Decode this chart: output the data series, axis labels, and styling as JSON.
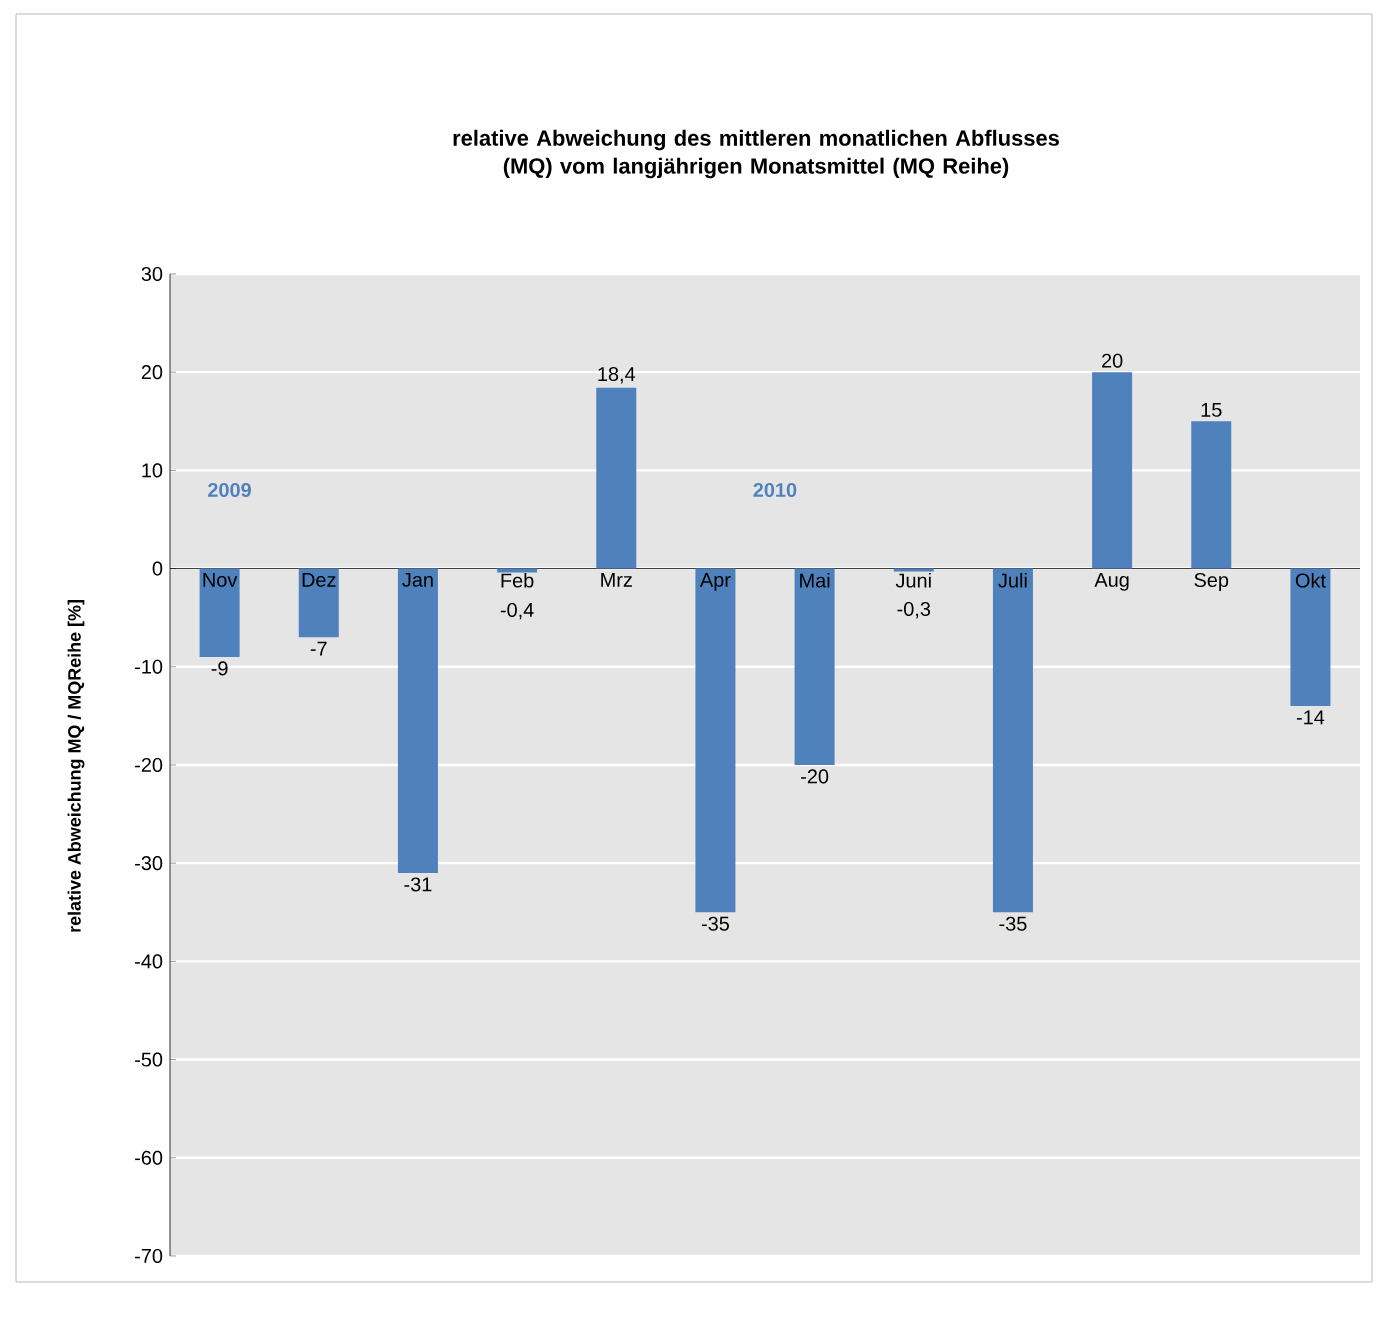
{
  "chart_data": {
    "type": "bar",
    "title": "relative Abweichung des mittleren monatlichen Abflusses (MQ) vom langjährigen Monatsmittel (MQ Reihe)",
    "ylabel": "relative Abweichung MQ / MQReihe [%]",
    "categories": [
      "Nov",
      "Dez",
      "Jan",
      "Feb",
      "Mrz",
      "Apr",
      "Mai",
      "Juni",
      "Juli",
      "Aug",
      "Sep",
      "Okt"
    ],
    "values": [
      -9,
      -7,
      -31,
      -0.4,
      18.4,
      -35,
      -20,
      -0.3,
      -35,
      20,
      15,
      -14
    ],
    "value_labels": [
      "-9",
      "-7",
      "-31",
      "-0,4",
      "18,4",
      "-35",
      "-20",
      "-0,3",
      "-35",
      "20",
      "15",
      "-14"
    ],
    "color": "#4f81bd",
    "annotations": [
      "2009",
      "2010"
    ],
    "ylim": [
      -70,
      30
    ],
    "yticks": [
      -70,
      -60,
      -50,
      -40,
      -30,
      -20,
      -10,
      0,
      10,
      20,
      30
    ],
    "grid": "y"
  }
}
